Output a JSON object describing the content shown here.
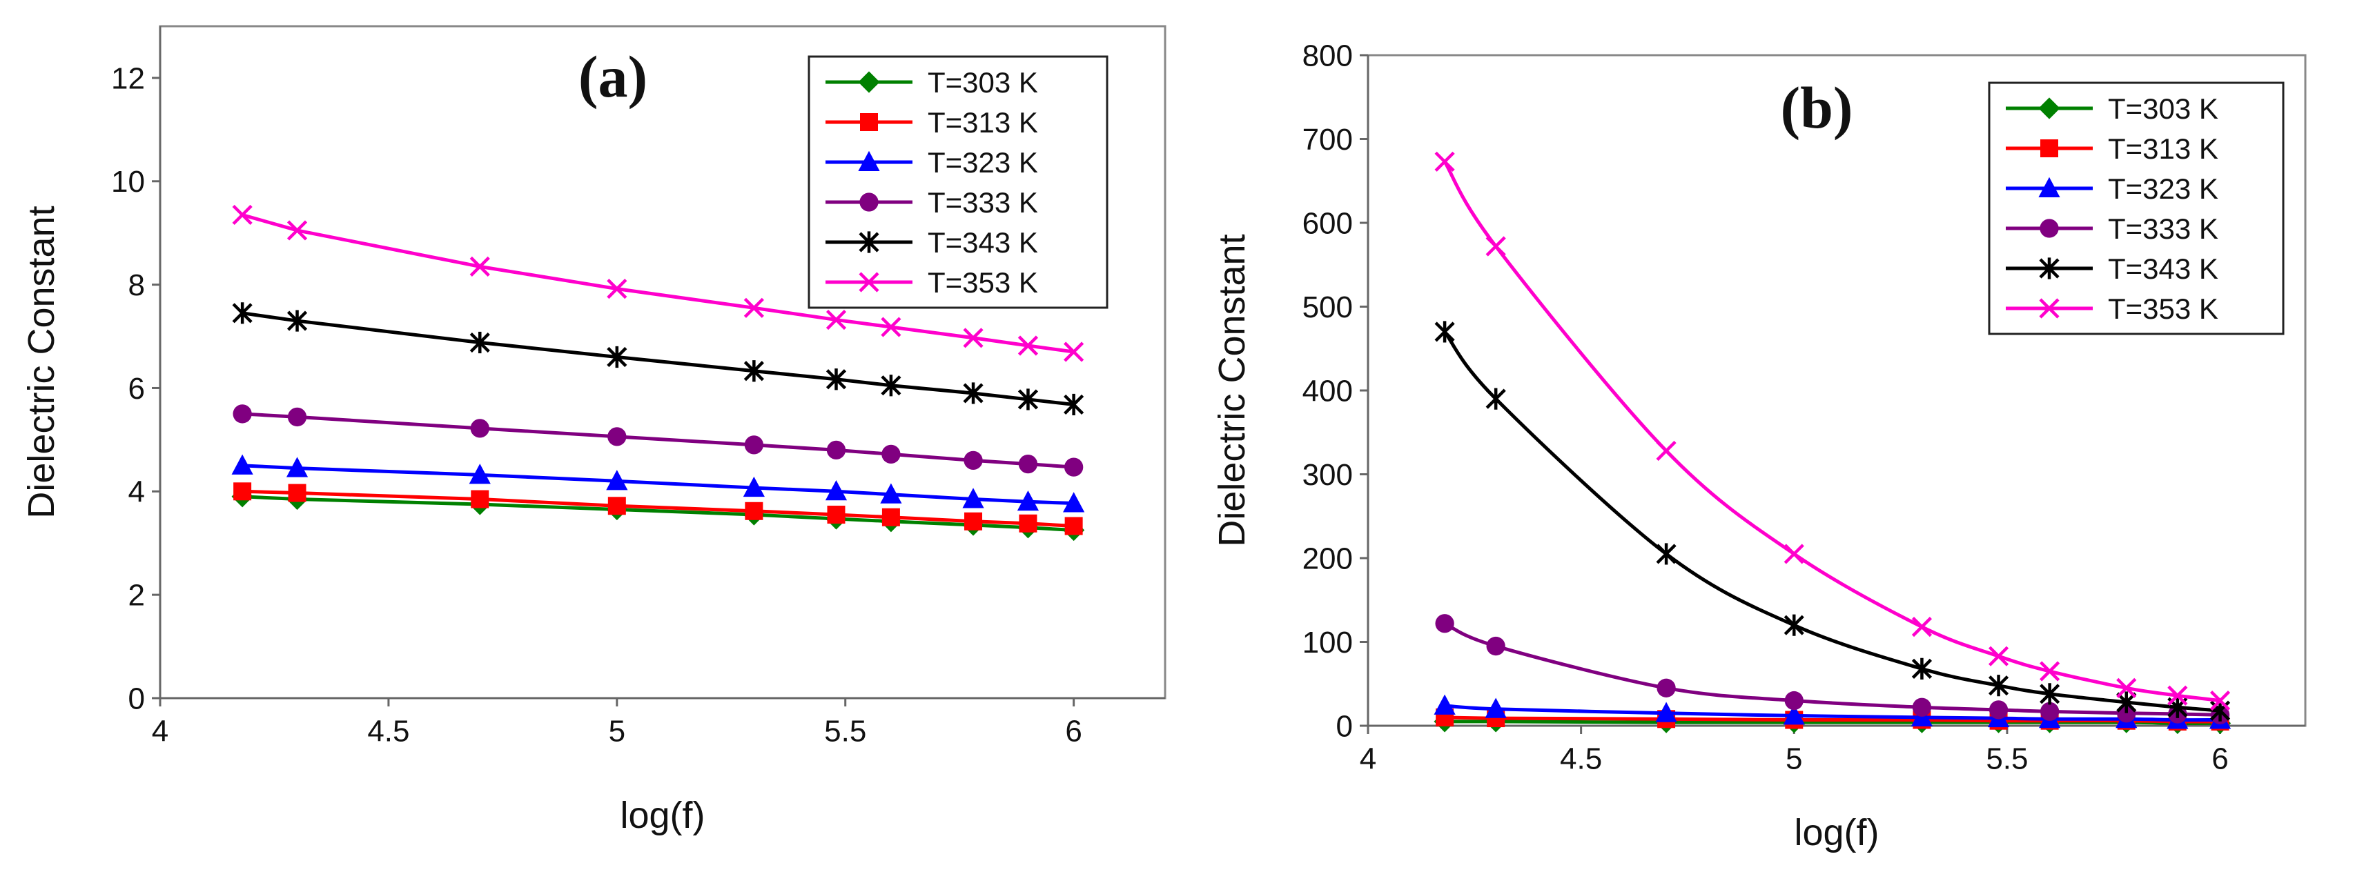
{
  "figure": {
    "name": "dielectric-constant-vs-log-frequency"
  },
  "chart_data": [
    {
      "type": "line",
      "panel_label": "(a)",
      "title": "",
      "xlabel": "log(f)",
      "ylabel": "Dielectric Constant",
      "xlim": [
        4,
        6.2
      ],
      "ylim": [
        0,
        13
      ],
      "xticks": [
        4,
        4.5,
        5,
        5.5,
        6
      ],
      "xtick_labels": [
        "4",
        "4.5",
        "5",
        "5.5",
        "6"
      ],
      "yticks": [
        0,
        2,
        4,
        6,
        8,
        10,
        12
      ],
      "ytick_labels": [
        "0",
        "2",
        "4",
        "6",
        "8",
        "10",
        "12"
      ],
      "grid": false,
      "smooth": false,
      "legend_position": "top-right",
      "x": [
        4.18,
        4.3,
        4.7,
        5.0,
        5.3,
        5.48,
        5.6,
        5.78,
        5.9,
        6.0
      ],
      "series": [
        {
          "name": "T=303 K",
          "color": "#008000",
          "marker": "diamond",
          "values": [
            3.9,
            3.85,
            3.75,
            3.65,
            3.55,
            3.47,
            3.42,
            3.35,
            3.3,
            3.25
          ]
        },
        {
          "name": "T=313 K",
          "color": "#ff0000",
          "marker": "square",
          "values": [
            4.0,
            3.97,
            3.85,
            3.72,
            3.62,
            3.55,
            3.5,
            3.42,
            3.38,
            3.33
          ]
        },
        {
          "name": "T=323 K",
          "color": "#0000ff",
          "marker": "triangle",
          "values": [
            4.5,
            4.45,
            4.32,
            4.2,
            4.07,
            4.0,
            3.94,
            3.85,
            3.8,
            3.77
          ]
        },
        {
          "name": "T=333 K",
          "color": "#800080",
          "marker": "circle",
          "values": [
            5.5,
            5.44,
            5.22,
            5.06,
            4.9,
            4.8,
            4.72,
            4.6,
            4.53,
            4.47
          ]
        },
        {
          "name": "T=343 K",
          "color": "#000000",
          "marker": "star",
          "values": [
            7.45,
            7.3,
            6.88,
            6.6,
            6.33,
            6.17,
            6.05,
            5.9,
            5.78,
            5.68
          ]
        },
        {
          "name": "T=353 K",
          "color": "#ff00cc",
          "marker": "x",
          "values": [
            9.35,
            9.05,
            8.35,
            7.92,
            7.55,
            7.32,
            7.18,
            6.97,
            6.82,
            6.7
          ]
        }
      ]
    },
    {
      "type": "line",
      "panel_label": "(b)",
      "title": "",
      "xlabel": "log(f)",
      "ylabel": "Dielectric Constant",
      "xlim": [
        4,
        6.2
      ],
      "ylim": [
        0,
        800
      ],
      "xticks": [
        4,
        4.5,
        5,
        5.5,
        6
      ],
      "xtick_labels": [
        "4",
        "4.5",
        "5",
        "5.5",
        "6"
      ],
      "yticks": [
        0,
        100,
        200,
        300,
        400,
        500,
        600,
        700,
        800
      ],
      "ytick_labels": [
        "0",
        "100",
        "200",
        "300",
        "400",
        "500",
        "600",
        "700",
        "800"
      ],
      "grid": false,
      "smooth": true,
      "legend_position": "top-right",
      "x": [
        4.18,
        4.3,
        4.7,
        5.0,
        5.3,
        5.48,
        5.6,
        5.78,
        5.9,
        6.0
      ],
      "series": [
        {
          "name": "T=303 K",
          "color": "#008000",
          "marker": "diamond",
          "values": [
            5,
            5,
            4,
            4,
            4,
            4,
            4,
            4,
            3,
            3
          ]
        },
        {
          "name": "T=313 K",
          "color": "#ff0000",
          "marker": "square",
          "values": [
            10,
            9,
            8,
            7,
            7,
            6,
            6,
            6,
            5,
            5
          ]
        },
        {
          "name": "T=323 K",
          "color": "#0000ff",
          "marker": "triangle",
          "values": [
            24,
            20,
            15,
            12,
            10,
            9,
            8,
            8,
            7,
            7
          ]
        },
        {
          "name": "T=333 K",
          "color": "#800080",
          "marker": "circle",
          "values": [
            122,
            95,
            45,
            30,
            22,
            19,
            17,
            15,
            14,
            13
          ]
        },
        {
          "name": "T=343 K",
          "color": "#000000",
          "marker": "star",
          "values": [
            470,
            390,
            205,
            120,
            68,
            48,
            38,
            28,
            22,
            18
          ]
        },
        {
          "name": "T=353 K",
          "color": "#ff00cc",
          "marker": "x",
          "values": [
            673,
            572,
            328,
            205,
            118,
            83,
            65,
            45,
            36,
            30
          ]
        }
      ]
    }
  ]
}
